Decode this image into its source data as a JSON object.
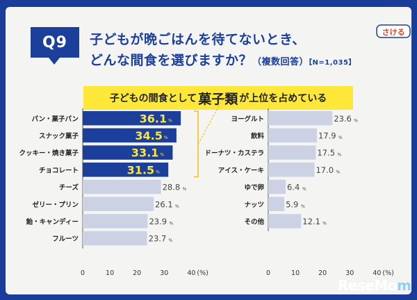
{
  "question": {
    "badge": "Q9",
    "line1": "子どもが晩ごはんを待てないとき、",
    "line2": "どんな間食を選びますか？",
    "line2_sub": "（複数回答）",
    "sample": "【N=1,035】"
  },
  "banner": {
    "pre": "子どもの間食として",
    "emph": "菓子類",
    "post": "が上位を占めている"
  },
  "colors": {
    "frame": "#1b3d9a",
    "highlight_bar": "#1c3f9b",
    "normal_bar": "#ccd2e3",
    "highlight_text": "#fde83a",
    "banner": "#fde83a",
    "bracket": "#f3c21a"
  },
  "chart_data": [
    {
      "type": "bar",
      "orientation": "horizontal",
      "categories": [
        "パン・菓子パン",
        "スナック菓子",
        "クッキー・焼き菓子",
        "チョコレート",
        "チーズ",
        "ゼリー・プリン",
        "飴・キャンディー",
        "フルーツ"
      ],
      "values": [
        36.1,
        34.5,
        33.1,
        31.5,
        28.8,
        26.1,
        23.9,
        23.7
      ],
      "value_suffix": "%",
      "highlighted": [
        true,
        true,
        true,
        true,
        false,
        false,
        false,
        false
      ],
      "xlim": [
        0,
        40
      ],
      "xticks": [
        "0",
        "10",
        "20",
        "30",
        "40"
      ],
      "xlabel": "(%)"
    },
    {
      "type": "bar",
      "orientation": "horizontal",
      "categories": [
        "ヨーグルト",
        "飲料",
        "ドーナツ・カステラ",
        "アイス・ケーキ",
        "ゆで卵",
        "ナッツ",
        "その他"
      ],
      "values": [
        23.6,
        17.9,
        17.5,
        17.0,
        6.4,
        5.9,
        12.1
      ],
      "value_suffix": "%",
      "highlighted": [
        false,
        false,
        false,
        false,
        false,
        false,
        false
      ],
      "xlim": [
        0,
        40
      ],
      "xticks": [
        "0",
        "10",
        "20",
        "30",
        "40"
      ],
      "xlabel": "(%)"
    }
  ],
  "logo": {
    "text": "さける"
  },
  "watermark": {
    "text_a": "ReseMo",
    "text_b": "m"
  }
}
